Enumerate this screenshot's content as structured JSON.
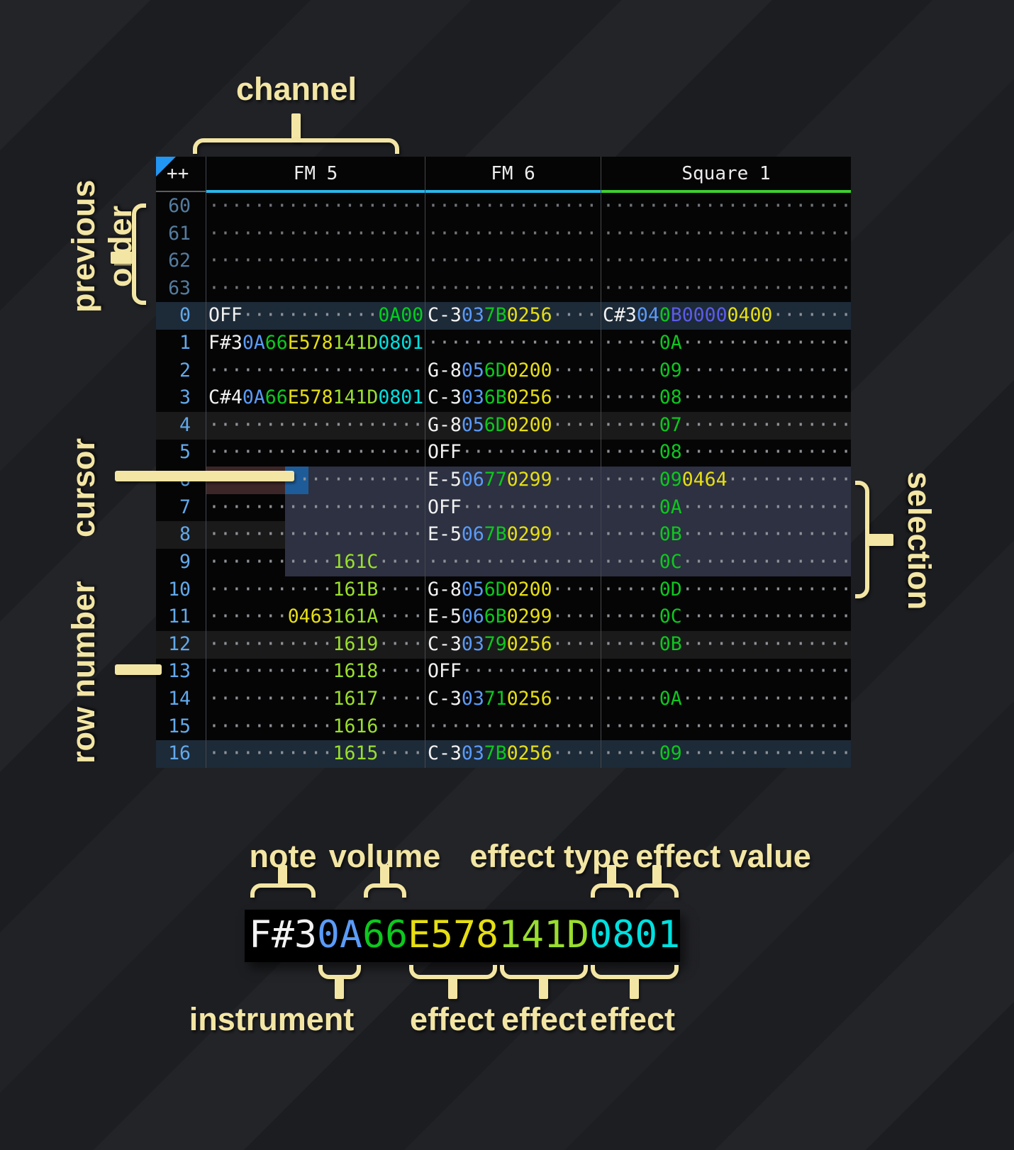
{
  "colors": {
    "accent": "#f3e6a4",
    "note": "#f2f2f2",
    "ins": "#5b9bf8",
    "vol": "#0dc81e",
    "fxY": "#e6df12",
    "fxL": "#9ade2e",
    "fxC": "#00e0e0",
    "fxG": "#00d020",
    "fxI": "#5c5ce8",
    "dim": "#8e9297",
    "rownum": "#62a9ea",
    "rownum_prev": "#547c9e",
    "underline_fm": "#2ab7ea",
    "underline_sq": "#3ecf2e",
    "cursor": "#1e5c99",
    "selection": "#2d3142",
    "cursor_row": "#3c2628",
    "row_highlight": "#1d2a38",
    "row_alt": "#1a1a1b",
    "corner_triangle": "#2196f3"
  },
  "annotations": {
    "channel": "channel",
    "previous_order": "previous order",
    "cursor": "cursor",
    "row_number": "row number",
    "selection": "selection"
  },
  "pattern": {
    "corner": "++",
    "channels": [
      {
        "name": "FM 5",
        "underline": "underline_fm"
      },
      {
        "name": "FM 6",
        "underline": "underline_fm"
      },
      {
        "name": "Square 1",
        "underline": "underline_sq"
      }
    ],
    "rows": [
      {
        "num": "60",
        "prev": true,
        "bg": null,
        "cells": [
          [
            [
              "···················",
              "dim"
            ]
          ],
          [
            [
              "···············",
              "dim"
            ]
          ],
          [
            [
              "······················",
              "dim"
            ]
          ]
        ]
      },
      {
        "num": "61",
        "prev": true,
        "bg": null,
        "cells": [
          [
            [
              "···················",
              "dim"
            ]
          ],
          [
            [
              "···············",
              "dim"
            ]
          ],
          [
            [
              "······················",
              "dim"
            ]
          ]
        ]
      },
      {
        "num": "62",
        "prev": true,
        "bg": null,
        "cells": [
          [
            [
              "···················",
              "dim"
            ]
          ],
          [
            [
              "···············",
              "dim"
            ]
          ],
          [
            [
              "······················",
              "dim"
            ]
          ]
        ]
      },
      {
        "num": "63",
        "prev": true,
        "bg": null,
        "cells": [
          [
            [
              "···················",
              "dim"
            ]
          ],
          [
            [
              "···············",
              "dim"
            ]
          ],
          [
            [
              "······················",
              "dim"
            ]
          ]
        ]
      },
      {
        "num": "0",
        "prev": false,
        "bg": "hl",
        "cells": [
          [
            [
              "OFF",
              "note"
            ],
            [
              "············",
              "dim"
            ],
            [
              "0A00",
              "fxG"
            ]
          ],
          [
            [
              "C-3",
              "note"
            ],
            [
              "03",
              "ins"
            ],
            [
              "7B",
              "vol"
            ],
            [
              "0256",
              "fxY"
            ],
            [
              "····",
              "dim"
            ]
          ],
          [
            [
              "C#3",
              "note"
            ],
            [
              "04",
              "ins"
            ],
            [
              "0",
              "vol"
            ],
            [
              "B0000",
              "fxI"
            ],
            [
              "0400",
              "fxY"
            ],
            [
              "·······",
              "dim"
            ]
          ]
        ]
      },
      {
        "num": "1",
        "prev": false,
        "bg": null,
        "cells": [
          [
            [
              "F#3",
              "note"
            ],
            [
              "0A",
              "ins"
            ],
            [
              "66",
              "vol"
            ],
            [
              "E578",
              "fxY"
            ],
            [
              "141D",
              "fxL"
            ],
            [
              "0801",
              "fxC"
            ]
          ],
          [
            [
              "···············",
              "dim"
            ]
          ],
          [
            [
              "·····",
              "dim"
            ],
            [
              "0A",
              "vol"
            ],
            [
              "···············",
              "dim"
            ]
          ]
        ]
      },
      {
        "num": "2",
        "prev": false,
        "bg": null,
        "cells": [
          [
            [
              "···················",
              "dim"
            ]
          ],
          [
            [
              "G-8",
              "note"
            ],
            [
              "05",
              "ins"
            ],
            [
              "6D",
              "vol"
            ],
            [
              "0200",
              "fxY"
            ],
            [
              "····",
              "dim"
            ]
          ],
          [
            [
              "·····",
              "dim"
            ],
            [
              "09",
              "vol"
            ],
            [
              "···············",
              "dim"
            ]
          ]
        ]
      },
      {
        "num": "3",
        "prev": false,
        "bg": null,
        "cells": [
          [
            [
              "C#4",
              "note"
            ],
            [
              "0A",
              "ins"
            ],
            [
              "66",
              "vol"
            ],
            [
              "E578",
              "fxY"
            ],
            [
              "141D",
              "fxL"
            ],
            [
              "0801",
              "fxC"
            ]
          ],
          [
            [
              "C-3",
              "note"
            ],
            [
              "03",
              "ins"
            ],
            [
              "6B",
              "vol"
            ],
            [
              "0256",
              "fxY"
            ],
            [
              "····",
              "dim"
            ]
          ],
          [
            [
              "·····",
              "dim"
            ],
            [
              "08",
              "vol"
            ],
            [
              "···············",
              "dim"
            ]
          ]
        ]
      },
      {
        "num": "4",
        "prev": false,
        "bg": "alt",
        "cells": [
          [
            [
              "···················",
              "dim"
            ]
          ],
          [
            [
              "G-8",
              "note"
            ],
            [
              "05",
              "ins"
            ],
            [
              "6D",
              "vol"
            ],
            [
              "0200",
              "fxY"
            ],
            [
              "····",
              "dim"
            ]
          ],
          [
            [
              "·····",
              "dim"
            ],
            [
              "07",
              "vol"
            ],
            [
              "···············",
              "dim"
            ]
          ]
        ]
      },
      {
        "num": "5",
        "prev": false,
        "bg": null,
        "cells": [
          [
            [
              "···················",
              "dim"
            ]
          ],
          [
            [
              "OFF",
              "note"
            ],
            [
              "············",
              "dim"
            ]
          ],
          [
            [
              "·····",
              "dim"
            ],
            [
              "08",
              "vol"
            ],
            [
              "···············",
              "dim"
            ]
          ]
        ]
      },
      {
        "num": "6",
        "prev": false,
        "bg": null,
        "cells": [
          [
            [
              "···················",
              "dim"
            ]
          ],
          [
            [
              "E-5",
              "note"
            ],
            [
              "06",
              "ins"
            ],
            [
              "77",
              "vol"
            ],
            [
              "0299",
              "fxY"
            ],
            [
              "····",
              "dim"
            ]
          ],
          [
            [
              "·····",
              "dim"
            ],
            [
              "09",
              "vol"
            ],
            [
              "0464",
              "fxY"
            ],
            [
              "···········",
              "dim"
            ]
          ]
        ]
      },
      {
        "num": "7",
        "prev": false,
        "bg": null,
        "cells": [
          [
            [
              "···················",
              "dim"
            ]
          ],
          [
            [
              "OFF",
              "note"
            ],
            [
              "············",
              "dim"
            ]
          ],
          [
            [
              "·····",
              "dim"
            ],
            [
              "0A",
              "vol"
            ],
            [
              "···············",
              "dim"
            ]
          ]
        ]
      },
      {
        "num": "8",
        "prev": false,
        "bg": "alt",
        "cells": [
          [
            [
              "···················",
              "dim"
            ]
          ],
          [
            [
              "E-5",
              "note"
            ],
            [
              "06",
              "ins"
            ],
            [
              "7B",
              "vol"
            ],
            [
              "0299",
              "fxY"
            ],
            [
              "····",
              "dim"
            ]
          ],
          [
            [
              "·····",
              "dim"
            ],
            [
              "0B",
              "vol"
            ],
            [
              "···············",
              "dim"
            ]
          ]
        ]
      },
      {
        "num": "9",
        "prev": false,
        "bg": null,
        "cells": [
          [
            [
              "···········",
              "dim"
            ],
            [
              "161C",
              "fxL"
            ],
            [
              "····",
              "dim"
            ]
          ],
          [
            [
              "···············",
              "dim"
            ]
          ],
          [
            [
              "·····",
              "dim"
            ],
            [
              "0C",
              "vol"
            ],
            [
              "···············",
              "dim"
            ]
          ]
        ]
      },
      {
        "num": "10",
        "prev": false,
        "bg": null,
        "cells": [
          [
            [
              "···········",
              "dim"
            ],
            [
              "161B",
              "fxL"
            ],
            [
              "····",
              "dim"
            ]
          ],
          [
            [
              "G-8",
              "note"
            ],
            [
              "05",
              "ins"
            ],
            [
              "6D",
              "vol"
            ],
            [
              "0200",
              "fxY"
            ],
            [
              "····",
              "dim"
            ]
          ],
          [
            [
              "·····",
              "dim"
            ],
            [
              "0D",
              "vol"
            ],
            [
              "···············",
              "dim"
            ]
          ]
        ]
      },
      {
        "num": "11",
        "prev": false,
        "bg": null,
        "cells": [
          [
            [
              "·······",
              "dim"
            ],
            [
              "0463",
              "fxY"
            ],
            [
              "161A",
              "fxL"
            ],
            [
              "····",
              "dim"
            ]
          ],
          [
            [
              "E-5",
              "note"
            ],
            [
              "06",
              "ins"
            ],
            [
              "6B",
              "vol"
            ],
            [
              "0299",
              "fxY"
            ],
            [
              "····",
              "dim"
            ]
          ],
          [
            [
              "·····",
              "dim"
            ],
            [
              "0C",
              "vol"
            ],
            [
              "···············",
              "dim"
            ]
          ]
        ]
      },
      {
        "num": "12",
        "prev": false,
        "bg": "alt",
        "cells": [
          [
            [
              "···········",
              "dim"
            ],
            [
              "1619",
              "fxL"
            ],
            [
              "····",
              "dim"
            ]
          ],
          [
            [
              "C-3",
              "note"
            ],
            [
              "03",
              "ins"
            ],
            [
              "79",
              "vol"
            ],
            [
              "0256",
              "fxY"
            ],
            [
              "····",
              "dim"
            ]
          ],
          [
            [
              "·····",
              "dim"
            ],
            [
              "0B",
              "vol"
            ],
            [
              "···············",
              "dim"
            ]
          ]
        ]
      },
      {
        "num": "13",
        "prev": false,
        "bg": null,
        "cells": [
          [
            [
              "···········",
              "dim"
            ],
            [
              "1618",
              "fxL"
            ],
            [
              "····",
              "dim"
            ]
          ],
          [
            [
              "OFF",
              "note"
            ],
            [
              "············",
              "dim"
            ]
          ],
          [
            [
              "······················",
              "dim"
            ]
          ]
        ]
      },
      {
        "num": "14",
        "prev": false,
        "bg": null,
        "cells": [
          [
            [
              "···········",
              "dim"
            ],
            [
              "1617",
              "fxL"
            ],
            [
              "····",
              "dim"
            ]
          ],
          [
            [
              "C-3",
              "note"
            ],
            [
              "03",
              "ins"
            ],
            [
              "71",
              "vol"
            ],
            [
              "0256",
              "fxY"
            ],
            [
              "····",
              "dim"
            ]
          ],
          [
            [
              "·····",
              "dim"
            ],
            [
              "0A",
              "vol"
            ],
            [
              "···············",
              "dim"
            ]
          ]
        ]
      },
      {
        "num": "15",
        "prev": false,
        "bg": null,
        "cells": [
          [
            [
              "···········",
              "dim"
            ],
            [
              "1616",
              "fxL"
            ],
            [
              "····",
              "dim"
            ]
          ],
          [
            [
              "···············",
              "dim"
            ]
          ],
          [
            [
              "······················",
              "dim"
            ]
          ]
        ]
      },
      {
        "num": "16",
        "prev": false,
        "bg": "hl",
        "cells": [
          [
            [
              "···········",
              "dim"
            ],
            [
              "1615",
              "fxL"
            ],
            [
              "····",
              "dim"
            ]
          ],
          [
            [
              "C-3",
              "note"
            ],
            [
              "03",
              "ins"
            ],
            [
              "7B",
              "vol"
            ],
            [
              "0256",
              "fxY"
            ],
            [
              "····",
              "dim"
            ]
          ],
          [
            [
              "·····",
              "dim"
            ],
            [
              "09",
              "vol"
            ],
            [
              "···············",
              "dim"
            ]
          ]
        ]
      }
    ]
  },
  "legend": {
    "cell_segments": [
      [
        "F#3",
        "note"
      ],
      [
        "0A",
        "ins"
      ],
      [
        "66",
        "vol"
      ],
      [
        "E578",
        "fxY"
      ],
      [
        "141D",
        "fxL"
      ],
      [
        "0801",
        "fxC"
      ]
    ],
    "top_labels": [
      "note",
      "volume",
      "effect type",
      "effect value"
    ],
    "bottom_labels": [
      "instrument",
      "effect",
      "effect",
      "effect"
    ]
  }
}
